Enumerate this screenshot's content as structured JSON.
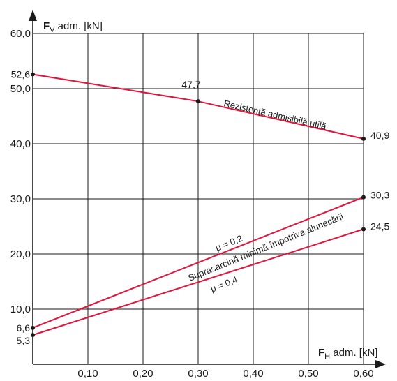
{
  "chart_data": {
    "type": "line",
    "ylabel": {
      "bold": "F",
      "sub": "V",
      "rest": " adm. [kN]"
    },
    "xlabel": {
      "bold": "F",
      "sub": "H",
      "rest": " adm. [kN]"
    },
    "xlim": [
      0,
      0.6
    ],
    "ylim": [
      0,
      60
    ],
    "x_ticks": [
      {
        "value": 0.1,
        "label": "0,10"
      },
      {
        "value": 0.2,
        "label": "0,20"
      },
      {
        "value": 0.3,
        "label": "0,30"
      },
      {
        "value": 0.4,
        "label": "0,40"
      },
      {
        "value": 0.5,
        "label": "0,50"
      },
      {
        "value": 0.6,
        "label": "0,60"
      }
    ],
    "y_ticks": [
      {
        "value": 10,
        "label": "10,0"
      },
      {
        "value": 20,
        "label": "20,0"
      },
      {
        "value": 30,
        "label": "30,0"
      },
      {
        "value": 40,
        "label": "40,0"
      },
      {
        "value": 50,
        "label": "50,0"
      },
      {
        "value": 60,
        "label": "60,0"
      }
    ],
    "grid": true,
    "line_color": "#e0143c",
    "grid_color": "#1a1a1a",
    "series": [
      {
        "name": "Rezistență admisibilă utilă",
        "x": [
          0,
          0.3,
          0.6
        ],
        "y": [
          52.6,
          47.7,
          40.9
        ],
        "point_labels": [
          "52,6",
          "47,7",
          "40,9"
        ]
      },
      {
        "name": "μ = 0,2",
        "x": [
          0,
          0.6
        ],
        "y": [
          6.6,
          30.3
        ],
        "point_labels": [
          "6,6",
          "30,3"
        ]
      },
      {
        "name": "μ = 0,4",
        "x": [
          0,
          0.6
        ],
        "y": [
          5.3,
          24.5
        ],
        "point_labels": [
          "5,3",
          "24,5"
        ]
      }
    ],
    "annotations": [
      {
        "text": "Suprasarcină minimă împotriva alunecării",
        "between": [
          "μ = 0,2",
          "μ = 0,4"
        ]
      }
    ]
  }
}
